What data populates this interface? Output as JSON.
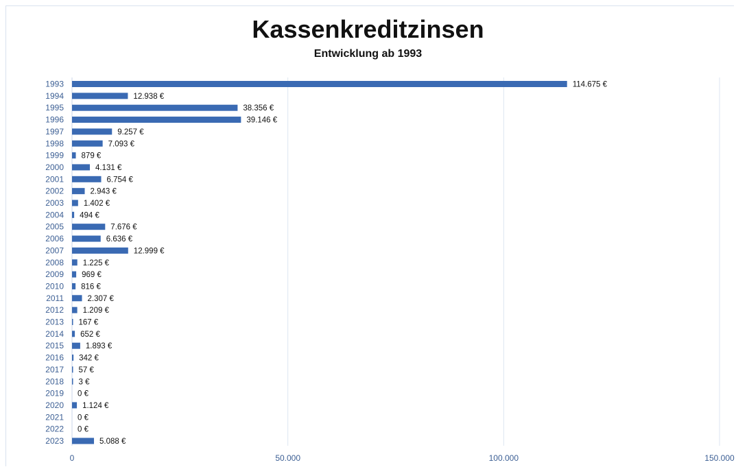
{
  "chart_data": {
    "type": "bar",
    "orientation": "horizontal",
    "title": "Kassenkreditzinsen",
    "subtitle": "Entwicklung ab 1993",
    "xlabel": "",
    "ylabel": "",
    "xlim": [
      0,
      150000
    ],
    "x_ticks": [
      0,
      50000,
      100000,
      150000
    ],
    "x_tick_labels": [
      "0",
      "50.000",
      "100.000",
      "150.000"
    ],
    "grid": "vertical",
    "legend": "none",
    "bar_color": "#3a6ab3",
    "category_label_color": "#3c5f94",
    "categories": [
      "1993",
      "1994",
      "1995",
      "1996",
      "1997",
      "1998",
      "1999",
      "2000",
      "2001",
      "2002",
      "2003",
      "2004",
      "2005",
      "2006",
      "2007",
      "2008",
      "2009",
      "2010",
      "2011",
      "2012",
      "2013",
      "2014",
      "2015",
      "2016",
      "2017",
      "2018",
      "2019",
      "2020",
      "2021",
      "2022",
      "2023"
    ],
    "values": [
      114675,
      12938,
      38356,
      39146,
      9257,
      7093,
      879,
      4131,
      6754,
      2943,
      1402,
      494,
      7676,
      6636,
      12999,
      1225,
      969,
      816,
      2307,
      1209,
      167,
      652,
      1893,
      342,
      57,
      3,
      0,
      1124,
      0,
      0,
      5088
    ],
    "value_labels": [
      "114.675 €",
      "12.938 €",
      "38.356 €",
      "39.146 €",
      "9.257 €",
      "7.093 €",
      "879 €",
      "4.131 €",
      "6.754 €",
      "2.943 €",
      "1.402 €",
      "494 €",
      "7.676 €",
      "6.636 €",
      "12.999 €",
      "1.225 €",
      "969 €",
      "816 €",
      "2.307 €",
      "1.209 €",
      "167 €",
      "652 €",
      "1.893 €",
      "342 €",
      "57 €",
      "3 €",
      "0 €",
      "1.124 €",
      "0 €",
      "0 €",
      "5.088 €"
    ]
  }
}
